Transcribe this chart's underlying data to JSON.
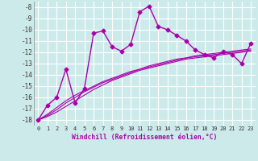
{
  "xlabel": "Windchill (Refroidissement éolien,°C)",
  "background_color": "#cdeaea",
  "grid_color": "#b0d8d8",
  "line_color": "#aa00aa",
  "markersize": 2.5,
  "linewidth": 1.0,
  "xlim": [
    -0.5,
    23.5
  ],
  "ylim": [
    -18.5,
    -7.5
  ],
  "xticks": [
    0,
    1,
    2,
    3,
    4,
    5,
    6,
    7,
    8,
    9,
    10,
    11,
    12,
    13,
    14,
    15,
    16,
    17,
    18,
    19,
    20,
    21,
    22,
    23
  ],
  "yticks": [
    -18,
    -17,
    -16,
    -15,
    -14,
    -13,
    -12,
    -11,
    -10,
    -9,
    -8
  ],
  "main_series": [
    -18.0,
    -16.7,
    -16.0,
    -13.5,
    -16.5,
    -15.2,
    -10.3,
    -10.1,
    -11.5,
    -11.9,
    -11.3,
    -8.4,
    -7.9,
    -9.7,
    -10.0,
    -10.5,
    -11.0,
    -11.8,
    -12.2,
    -12.5,
    -11.9,
    -12.2,
    -13.0,
    -11.2
  ],
  "line2": [
    -18.0,
    -17.5,
    -16.9,
    -16.3,
    -15.8,
    -15.4,
    -15.0,
    -14.6,
    -14.3,
    -14.0,
    -13.7,
    -13.5,
    -13.2,
    -13.0,
    -12.8,
    -12.6,
    -12.5,
    -12.3,
    -12.2,
    -12.1,
    -12.0,
    -11.9,
    -11.8,
    -11.7
  ],
  "line3": [
    -18.0,
    -17.6,
    -17.1,
    -16.5,
    -16.0,
    -15.5,
    -15.1,
    -14.7,
    -14.4,
    -14.1,
    -13.8,
    -13.5,
    -13.3,
    -13.1,
    -12.9,
    -12.7,
    -12.5,
    -12.4,
    -12.3,
    -12.2,
    -12.1,
    -12.0,
    -11.9,
    -11.8
  ],
  "line4": [
    -18.0,
    -17.7,
    -17.3,
    -16.8,
    -16.3,
    -15.8,
    -15.3,
    -14.9,
    -14.5,
    -14.2,
    -13.9,
    -13.6,
    -13.4,
    -13.2,
    -13.0,
    -12.8,
    -12.6,
    -12.5,
    -12.4,
    -12.3,
    -12.2,
    -12.1,
    -12.0,
    -11.9
  ]
}
